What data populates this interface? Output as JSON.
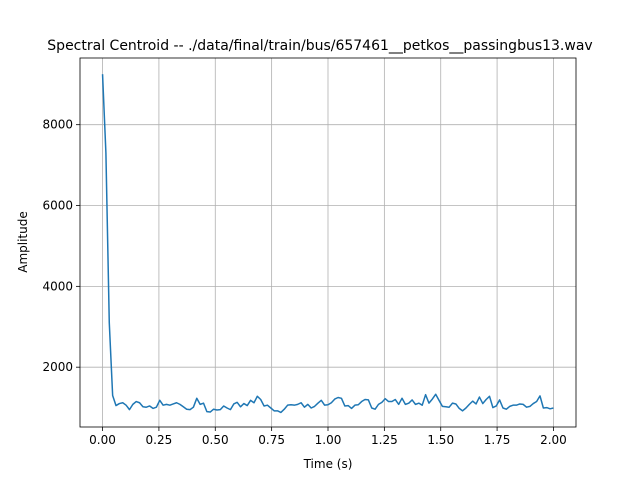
{
  "chart_data": {
    "type": "line",
    "title": "Spectral Centroid -- ./data/final/train/bus/657461__petkos__passingbus13.wav",
    "xlabel": "Time (s)",
    "ylabel": "Amplitude",
    "xlim": [
      -0.1,
      2.1
    ],
    "ylim": [
      520,
      9650
    ],
    "x_ticks": [
      0.0,
      0.25,
      0.5,
      0.75,
      1.0,
      1.25,
      1.5,
      1.75,
      2.0
    ],
    "x_tick_labels": [
      "0.00",
      "0.25",
      "0.50",
      "0.75",
      "1.00",
      "1.25",
      "1.50",
      "1.75",
      "2.00"
    ],
    "y_ticks": [
      2000,
      4000,
      6000,
      8000
    ],
    "y_tick_labels": [
      "2000",
      "4000",
      "6000",
      "8000"
    ],
    "grid": true,
    "line_color": "#1f77b4",
    "series": [
      {
        "x_start": 0.0,
        "x_end": 2.0,
        "values": [
          9250,
          7300,
          3100,
          1300,
          1050,
          1100,
          1120,
          1060,
          950,
          1080,
          1150,
          1120,
          1020,
          1010,
          1040,
          980,
          1010,
          1180,
          1060,
          1080,
          1060,
          1090,
          1120,
          1080,
          1020,
          960,
          950,
          1010,
          1230,
          1080,
          1110,
          900,
          890,
          960,
          940,
          950,
          1040,
          990,
          950,
          1090,
          1130,
          1020,
          1100,
          1050,
          1180,
          1120,
          1280,
          1200,
          1040,
          1060,
          990,
          920,
          920,
          880,
          960,
          1060,
          1070,
          1060,
          1080,
          1120,
          1010,
          1080,
          990,
          1030,
          1110,
          1180,
          1060,
          1070,
          1120,
          1210,
          1250,
          1230,
          1040,
          1050,
          980,
          1060,
          1070,
          1150,
          1200,
          1190,
          990,
          960,
          1080,
          1130,
          1220,
          1150,
          1150,
          1200,
          1080,
          1230,
          1080,
          1110,
          1190,
          1080,
          1110,
          1060,
          1320,
          1110,
          1210,
          1330,
          1180,
          1030,
          1020,
          1010,
          1110,
          1090,
          980,
          920,
          990,
          1080,
          1160,
          1090,
          1260,
          1100,
          1200,
          1280,
          1000,
          1040,
          1190,
          990,
          960,
          1030,
          1060,
          1060,
          1090,
          1080,
          1010,
          1030,
          1100,
          1150,
          1290,
          990,
          1000,
          970,
          990
        ]
      }
    ]
  }
}
